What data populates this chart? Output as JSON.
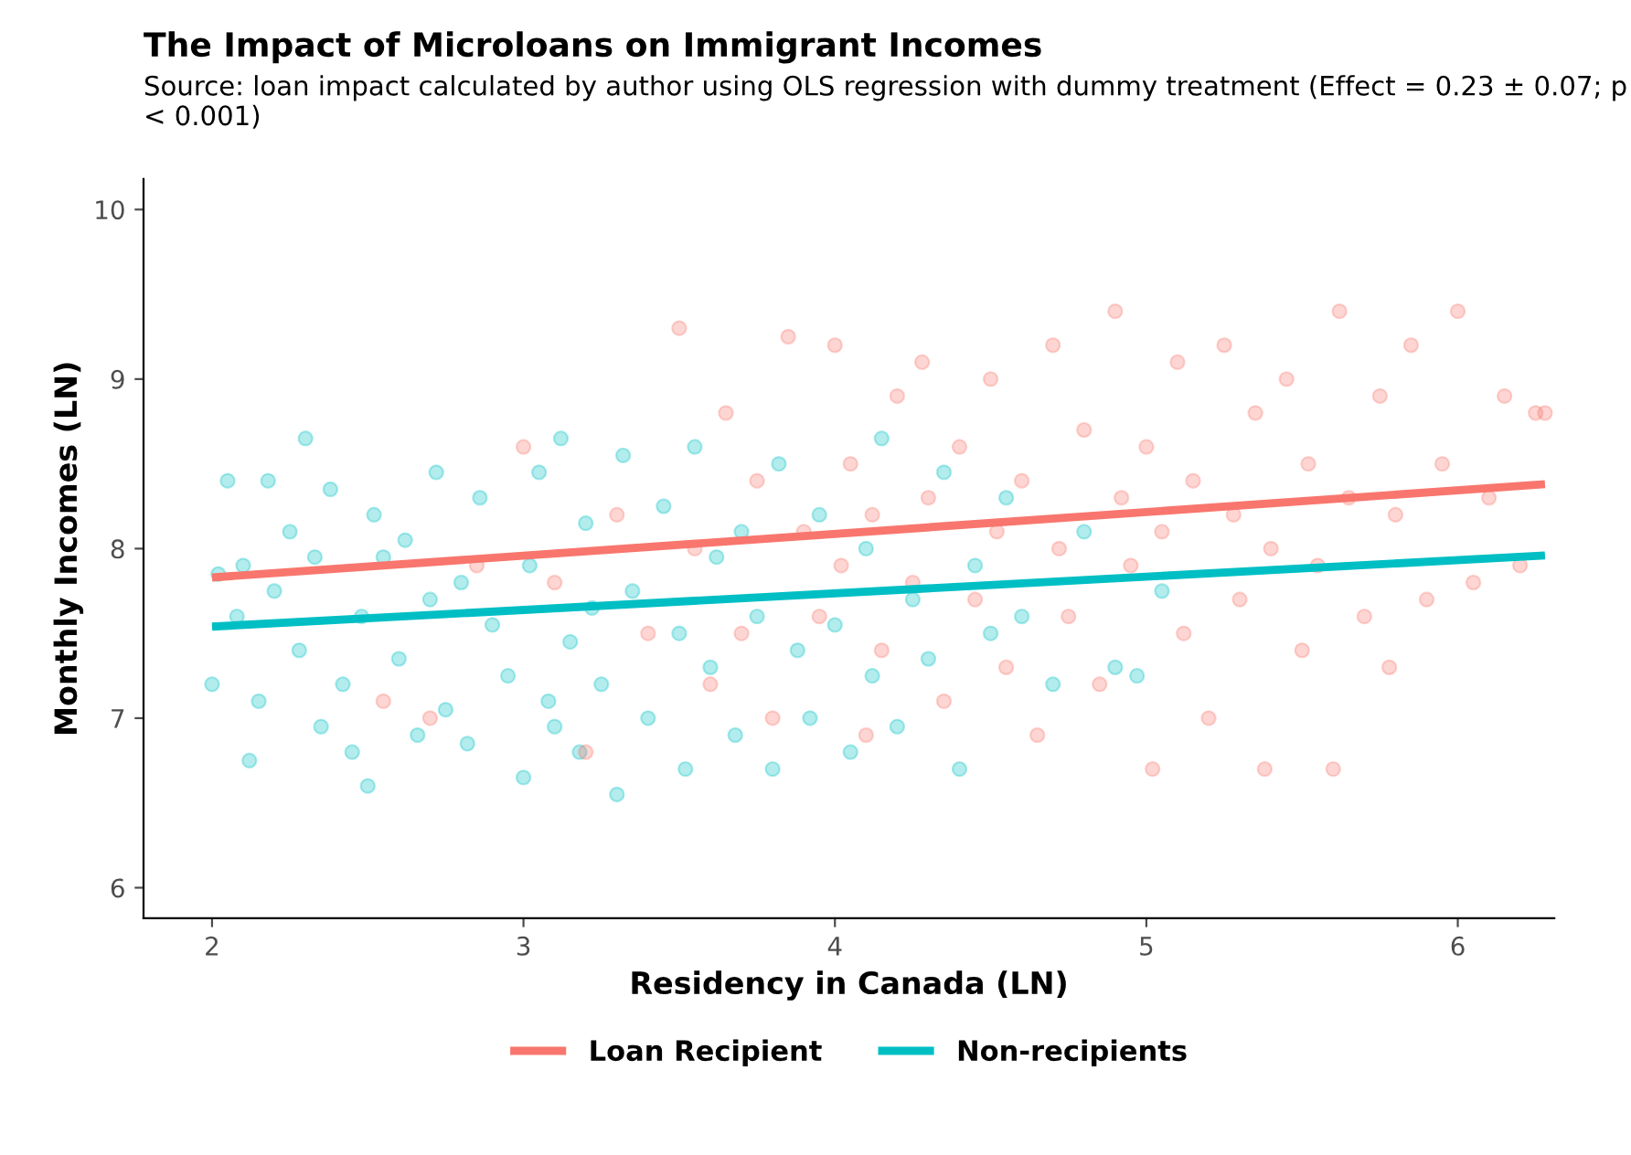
{
  "chart_data": {
    "type": "scatter",
    "title": "The Impact of Microloans on Immigrant Incomes",
    "subtitle": "Source: loan impact calculated by author using OLS regression with dummy treatment (Effect = 0.23 ± 0.07; p < 0.001)",
    "xlabel": "Residency in Canada (LN)",
    "ylabel": "Monthly Incomes (LN)",
    "xlim": [
      1.78,
      6.31
    ],
    "ylim": [
      5.82,
      10.18
    ],
    "xticks": [
      2,
      3,
      4,
      5,
      6
    ],
    "yticks": [
      6,
      7,
      8,
      9,
      10
    ],
    "grid": false,
    "legend": "bottom",
    "marker": "circle",
    "series": [
      {
        "color": "#00bfc4",
        "x": [
          2.0,
          2.02,
          2.05,
          2.08,
          2.1,
          2.12,
          2.15,
          2.18,
          2.2,
          2.25,
          2.28,
          2.3,
          2.33,
          2.35,
          2.38,
          2.42,
          2.45,
          2.48,
          2.5,
          2.52,
          2.55,
          2.6,
          2.62,
          2.66,
          2.7,
          2.72,
          2.75,
          2.8,
          2.82,
          2.86,
          2.9,
          2.95,
          3.0,
          3.02,
          3.05,
          3.08,
          3.1,
          3.12,
          3.15,
          3.18,
          3.2,
          3.22,
          3.25,
          3.3,
          3.32,
          3.35,
          3.4,
          3.45,
          3.5,
          3.52,
          3.55,
          3.6,
          3.62,
          3.68,
          3.7,
          3.75,
          3.8,
          3.82,
          3.88,
          3.92,
          3.95,
          4.0,
          4.05,
          4.1,
          4.12,
          4.15,
          4.2,
          4.25,
          4.3,
          4.35,
          4.4,
          4.45,
          4.5,
          4.55,
          4.6,
          4.7,
          4.8,
          4.9,
          4.97,
          5.05
        ],
        "values": [
          7.2,
          7.85,
          8.4,
          7.6,
          7.9,
          6.75,
          7.1,
          8.4,
          7.75,
          8.1,
          7.4,
          8.65,
          7.95,
          6.95,
          8.35,
          7.2,
          6.8,
          7.6,
          6.6,
          8.2,
          7.95,
          7.35,
          8.05,
          6.9,
          7.7,
          8.45,
          7.05,
          7.8,
          6.85,
          8.3,
          7.55,
          7.25,
          6.65,
          7.9,
          8.45,
          7.1,
          6.95,
          8.65,
          7.45,
          6.8,
          8.15,
          7.65,
          7.2,
          6.55,
          8.55,
          7.75,
          7.0,
          8.25,
          7.5,
          6.7,
          8.6,
          7.3,
          7.95,
          6.9,
          8.1,
          7.6,
          6.7,
          8.5,
          7.4,
          7.0,
          8.2,
          7.55,
          6.8,
          8.0,
          7.25,
          8.65,
          6.95,
          7.7,
          7.35,
          8.45,
          6.7,
          7.9,
          7.5,
          8.3,
          7.6,
          7.2,
          8.1,
          7.3,
          7.25,
          7.75
        ]
      },
      {
        "color": "#f8766d",
        "x": [
          2.55,
          2.7,
          2.85,
          3.0,
          3.1,
          3.2,
          3.3,
          3.4,
          3.5,
          3.55,
          3.6,
          3.65,
          3.7,
          3.75,
          3.8,
          3.85,
          3.9,
          3.95,
          4.0,
          4.02,
          4.05,
          4.1,
          4.12,
          4.15,
          4.2,
          4.25,
          4.28,
          4.3,
          4.35,
          4.4,
          4.45,
          4.5,
          4.52,
          4.55,
          4.6,
          4.65,
          4.7,
          4.72,
          4.75,
          4.8,
          4.85,
          4.9,
          4.92,
          4.95,
          5.0,
          5.02,
          5.05,
          5.1,
          5.12,
          5.15,
          5.2,
          5.25,
          5.28,
          5.3,
          5.35,
          5.38,
          5.4,
          5.45,
          5.5,
          5.52,
          5.55,
          5.6,
          5.62,
          5.65,
          5.7,
          5.75,
          5.78,
          5.8,
          5.85,
          5.9,
          5.95,
          6.0,
          6.05,
          6.1,
          6.15,
          6.2,
          6.25,
          6.28
        ],
        "values": [
          7.1,
          7.0,
          7.9,
          8.6,
          7.8,
          6.8,
          8.2,
          7.5,
          9.3,
          8.0,
          7.2,
          8.8,
          7.5,
          8.4,
          7.0,
          9.25,
          8.1,
          7.6,
          9.2,
          7.9,
          8.5,
          6.9,
          8.2,
          7.4,
          8.9,
          7.8,
          9.1,
          8.3,
          7.1,
          8.6,
          7.7,
          9.0,
          8.1,
          7.3,
          8.4,
          6.9,
          9.2,
          8.0,
          7.6,
          8.7,
          7.2,
          9.4,
          8.3,
          7.9,
          8.6,
          6.7,
          8.1,
          9.1,
          7.5,
          8.4,
          7.0,
          9.2,
          8.2,
          7.7,
          8.8,
          6.7,
          8.0,
          9.0,
          7.4,
          8.5,
          7.9,
          6.7,
          9.4,
          8.3,
          7.6,
          8.9,
          7.3,
          8.2,
          9.2,
          7.7,
          8.5,
          9.4,
          7.8,
          8.3,
          8.9,
          7.9,
          8.8,
          8.8
        ]
      },
      {
        "type": "line",
        "marker": "none",
        "name": "Loan Recipient",
        "color": "#f8766d",
        "x": [
          2.0,
          6.28
        ],
        "values": [
          7.83,
          8.38
        ]
      },
      {
        "type": "line",
        "marker": "none",
        "name": "Non-recipients",
        "color": "#00bfc4",
        "x": [
          2.0,
          6.28
        ],
        "values": [
          7.54,
          7.96
        ]
      }
    ]
  }
}
